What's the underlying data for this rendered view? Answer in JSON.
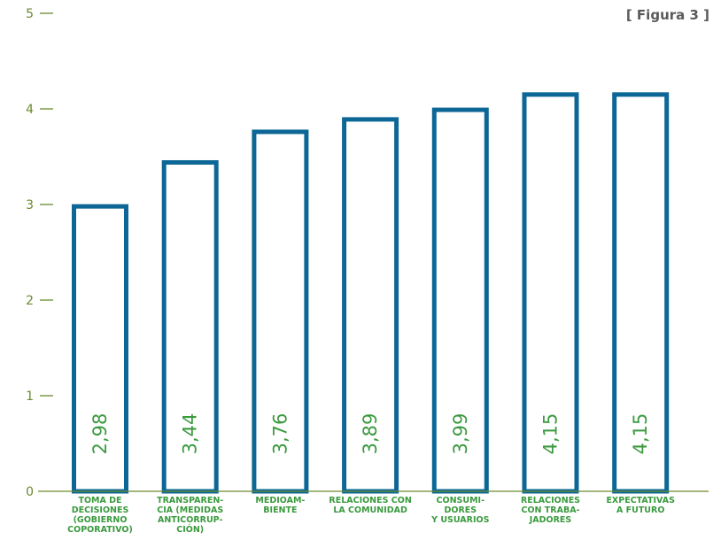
{
  "figure_label": "[ Figura 3 ]",
  "colors": {
    "bar_stroke": "#0d6796",
    "axis": "#6a8a2e",
    "value_text": "#3a9a3e",
    "category_text": "#3a9a3e",
    "tick_text": "#6a8a2e",
    "figure_label": "#5a5a5a"
  },
  "chart_data": {
    "type": "bar",
    "title": "",
    "xlabel": "",
    "ylabel": "",
    "ylim": [
      0,
      5
    ],
    "yticks": [
      "0",
      "1",
      "2",
      "3",
      "4",
      "5"
    ],
    "grid": false,
    "categories": [
      [
        "TOMA DE",
        "DECISIONES",
        "(GOBIERNO",
        "COPORATIVO)"
      ],
      [
        "TRANSPAREN-",
        "CIA (MEDIDAS",
        "ANTICORRUP-",
        "CIÓN)"
      ],
      [
        "MEDIOAM-",
        "BIENTE"
      ],
      [
        "RELACIONES CON",
        "LA COMUNIDAD"
      ],
      [
        "CONSUMI-",
        "DORES",
        "Y USUARIOS"
      ],
      [
        "RELACIONES",
        "CON TRABA-",
        "JADORES"
      ],
      [
        "EXPECTATIVAS",
        "A FUTURO"
      ]
    ],
    "values": [
      2.98,
      3.44,
      3.76,
      3.89,
      3.99,
      4.15,
      4.15
    ],
    "value_labels": [
      "2,98",
      "3,44",
      "3,76",
      "3,89",
      "3,99",
      "4,15",
      "4,15"
    ]
  }
}
